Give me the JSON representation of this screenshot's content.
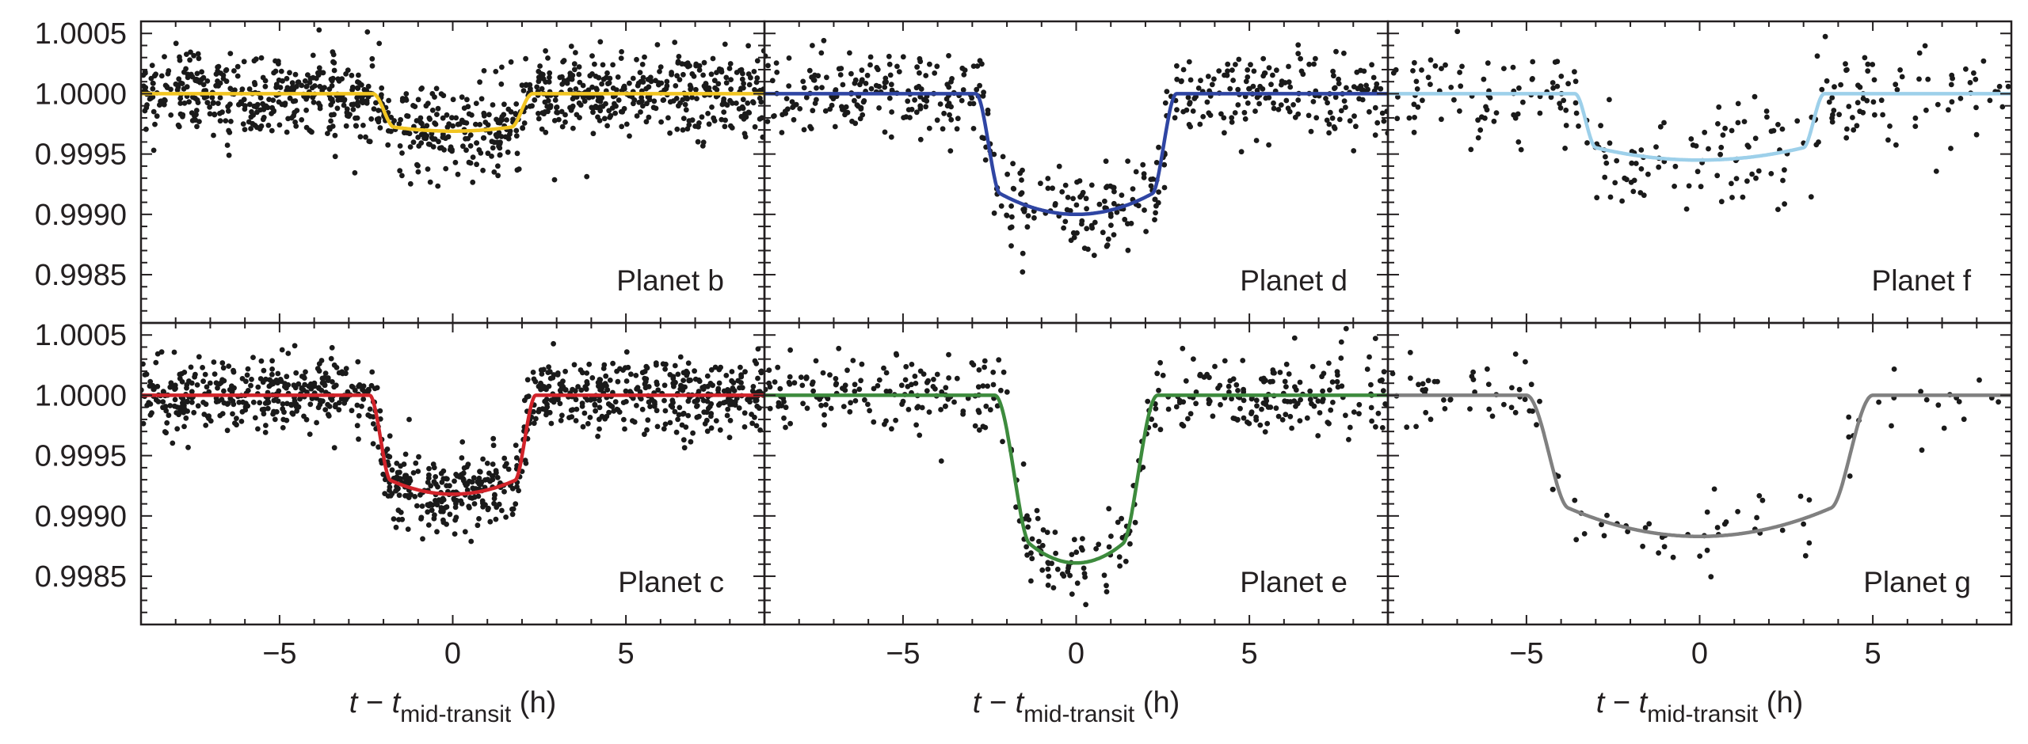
{
  "figure": {
    "x_axis_label": {
      "var": "t",
      "minus": " − ",
      "var2": "t",
      "subscript": "mid-transit",
      "unit": " (h)"
    },
    "y_tick_labels": [
      "1.0005",
      "1.0000",
      "0.9995",
      "0.9990",
      "0.9985"
    ],
    "x_tick_labels": [
      "−5",
      "0",
      "5"
    ]
  },
  "chart_data": [
    {
      "type": "scatter",
      "title": "Planet b",
      "color": "#f2c521",
      "xlim": [
        -9,
        9
      ],
      "ylim": [
        0.9981,
        1.0006
      ],
      "grid": false,
      "x_ticks": [
        -5,
        0,
        5
      ],
      "y_ticks": [
        0.9985,
        0.999,
        0.9995,
        1.0,
        1.0005
      ],
      "model": {
        "half_duration_h": 2.3,
        "ingress_h": 0.6,
        "center_flux": 0.99969,
        "limb_curvature": 0.2
      },
      "points": {
        "count": 1000,
        "scatter": 0.00017
      }
    },
    {
      "type": "scatter",
      "title": "Planet d",
      "color": "#2f45a3",
      "xlim": [
        -9,
        9
      ],
      "ylim": [
        0.9981,
        1.0006
      ],
      "grid": false,
      "x_ticks": [
        -5,
        0,
        5
      ],
      "y_ticks": [
        0.9985,
        0.999,
        0.9995,
        1.0,
        1.0005
      ],
      "model": {
        "half_duration_h": 2.9,
        "ingress_h": 0.7,
        "center_flux": 0.999,
        "limb_curvature": 0.3
      },
      "points": {
        "count": 520,
        "scatter": 0.00018
      }
    },
    {
      "type": "scatter",
      "title": "Planet f",
      "color": "#9dd0ea",
      "xlim": [
        -9,
        9
      ],
      "ylim": [
        0.9981,
        1.0006
      ],
      "grid": false,
      "x_ticks": [
        -5,
        0,
        5
      ],
      "y_ticks": [
        0.9985,
        0.999,
        0.9995,
        1.0,
        1.0005
      ],
      "model": {
        "half_duration_h": 3.6,
        "ingress_h": 0.6,
        "center_flux": 0.99945,
        "limb_curvature": 0.27
      },
      "points": {
        "count": 260,
        "scatter": 0.0002
      }
    },
    {
      "type": "scatter",
      "title": "Planet c",
      "color": "#d2232a",
      "xlim": [
        -9,
        9
      ],
      "ylim": [
        0.9981,
        1.0006
      ],
      "grid": false,
      "x_ticks": [
        -5,
        0,
        5
      ],
      "y_ticks": [
        0.9985,
        0.999,
        0.9995,
        1.0,
        1.0005
      ],
      "model": {
        "half_duration_h": 2.4,
        "ingress_h": 0.6,
        "center_flux": 0.99918,
        "limb_curvature": 0.25
      },
      "points": {
        "count": 1000,
        "scatter": 0.00015
      }
    },
    {
      "type": "scatter",
      "title": "Planet e",
      "color": "#3d8b3d",
      "xlim": [
        -9,
        9
      ],
      "ylim": [
        0.9981,
        1.0006
      ],
      "grid": false,
      "x_ticks": [
        -5,
        0,
        5
      ],
      "y_ticks": [
        0.9985,
        0.999,
        0.9995,
        1.0,
        1.0005
      ],
      "model": {
        "half_duration_h": 2.35,
        "ingress_h": 1.0,
        "center_flux": 0.99861,
        "limb_curvature": 0.35
      },
      "points": {
        "count": 420,
        "scatter": 0.00017
      }
    },
    {
      "type": "scatter",
      "title": "Planet g",
      "color": "#808080",
      "xlim": [
        -9,
        9
      ],
      "ylim": [
        0.9981,
        1.0006
      ],
      "grid": false,
      "x_ticks": [
        -5,
        0,
        5
      ],
      "y_ticks": [
        0.9985,
        0.999,
        0.9995,
        1.0,
        1.0005
      ],
      "model": {
        "half_duration_h": 5.0,
        "ingress_h": 1.2,
        "center_flux": 0.99883,
        "limb_curvature": 0.35
      },
      "points": {
        "count": 110,
        "scatter": 0.00015
      }
    }
  ]
}
